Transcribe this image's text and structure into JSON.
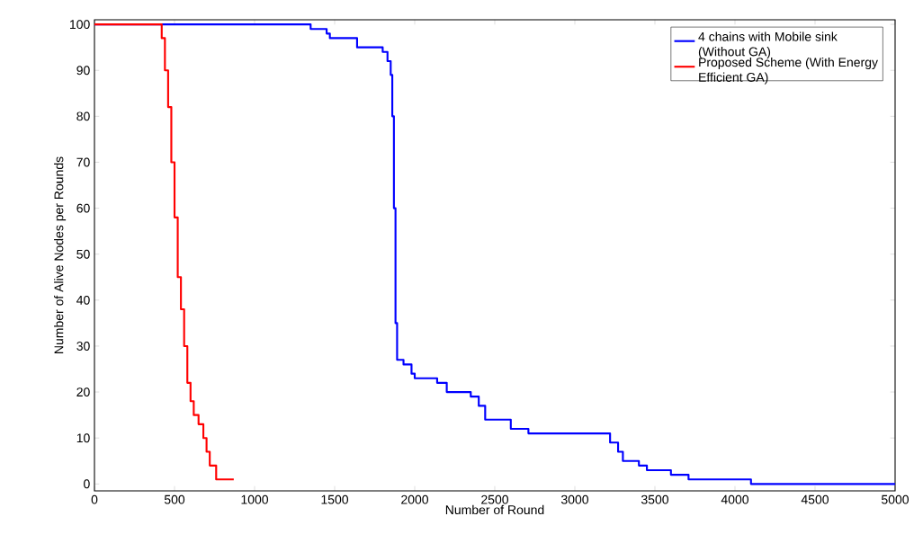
{
  "chart_data": {
    "type": "step",
    "xlabel": "Number of Round",
    "ylabel": "Number of Alive Nodes per Rounds",
    "xlim": [
      0,
      5000
    ],
    "ylim": [
      -1.5,
      101
    ],
    "xticks": [
      0,
      500,
      1000,
      1500,
      2000,
      2500,
      3000,
      3500,
      4000,
      4500,
      5000
    ],
    "yticks": [
      0,
      10,
      20,
      30,
      40,
      50,
      60,
      70,
      80,
      90,
      100
    ],
    "grid": false,
    "legend": "top right",
    "marker": "none",
    "line_style": "solid",
    "series": [
      {
        "name": "4 chains with Mobile sink (Without GA)",
        "color": "#0000ff",
        "x": [
          0,
          1340,
          1350,
          1450,
          1470,
          1600,
          1640,
          1750,
          1800,
          1830,
          1850,
          1860,
          1870,
          1880,
          1890,
          1930,
          1980,
          2000,
          2100,
          2140,
          2200,
          2300,
          2350,
          2400,
          2440,
          2550,
          2600,
          2700,
          2710,
          3200,
          3220,
          3270,
          3300,
          3400,
          3450,
          3550,
          3600,
          3700,
          3710,
          4080,
          4100,
          5000
        ],
        "values": [
          100,
          100,
          99,
          98,
          97,
          97,
          95,
          95,
          94,
          92,
          89,
          80,
          60,
          35,
          27,
          26,
          24,
          23,
          23,
          22,
          20,
          20,
          19,
          17,
          14,
          14,
          12,
          12,
          11,
          11,
          9,
          7,
          5,
          4,
          3,
          3,
          2,
          2,
          1,
          1,
          0,
          0
        ]
      },
      {
        "name": "Proposed Scheme (With Energy  Efficient GA)",
        "color": "#ff0000",
        "x": [
          0,
          400,
          420,
          440,
          460,
          480,
          500,
          520,
          540,
          560,
          580,
          600,
          620,
          650,
          680,
          700,
          720,
          760,
          870
        ],
        "values": [
          100,
          100,
          97,
          90,
          82,
          70,
          58,
          45,
          38,
          30,
          22,
          18,
          15,
          13,
          10,
          7,
          4,
          1,
          1
        ]
      }
    ]
  }
}
